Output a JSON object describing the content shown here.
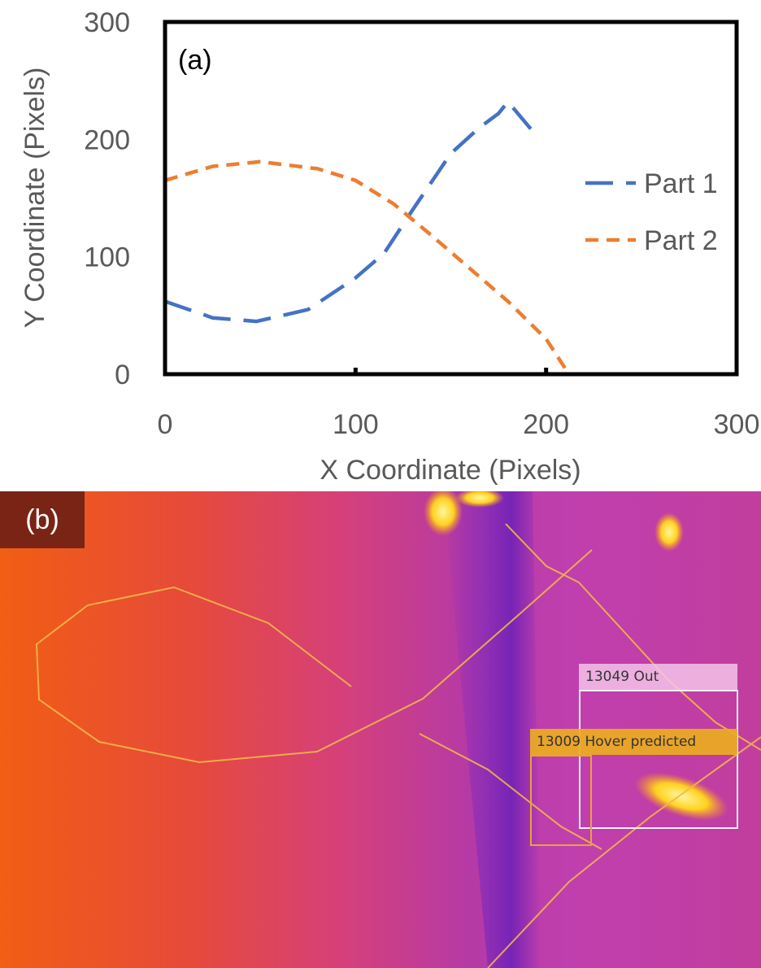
{
  "panel_a": {
    "label": "(a)",
    "chart_data": {
      "type": "line",
      "title": "",
      "xlabel": "X Coordinate (Pixels)",
      "ylabel": "Y Coordinate (Pixels)",
      "xlim": [
        0,
        300
      ],
      "ylim": [
        0,
        300
      ],
      "x_ticks": [
        "0",
        "100",
        "200",
        "300"
      ],
      "y_ticks": [
        "0",
        "100",
        "200",
        "300"
      ],
      "grid": false,
      "legend_position": "right",
      "series": [
        {
          "name": "Part 1",
          "color": "#4472c4",
          "line_style": "long-dash",
          "x": [
            0,
            25,
            48,
            75,
            100,
            115,
            130,
            150,
            165,
            175,
            180,
            195
          ],
          "y": [
            62,
            48,
            45,
            55,
            82,
            103,
            140,
            188,
            210,
            222,
            232,
            203
          ]
        },
        {
          "name": "Part 2",
          "color": "#ed7d31",
          "line_style": "dash",
          "x": [
            0,
            25,
            50,
            80,
            100,
            120,
            140,
            160,
            180,
            200,
            210
          ],
          "y": [
            165,
            177,
            181,
            175,
            165,
            145,
            118,
            90,
            62,
            30,
            5
          ]
        }
      ]
    }
  },
  "panel_b": {
    "label": "(b)",
    "colors": {
      "background_left": "#f15e14",
      "background_right": "#b52ab8",
      "dark_stripe": "#6a20b8",
      "track_line": "#f2b64a",
      "hotspot": "#fff06a"
    },
    "detections": [
      {
        "id": "13049",
        "text": "13049 Out",
        "box_color": "#f4ecf6"
      },
      {
        "id": "13009",
        "text": "13009 Hover  predicted",
        "box_color": "#e7a43a"
      }
    ]
  }
}
